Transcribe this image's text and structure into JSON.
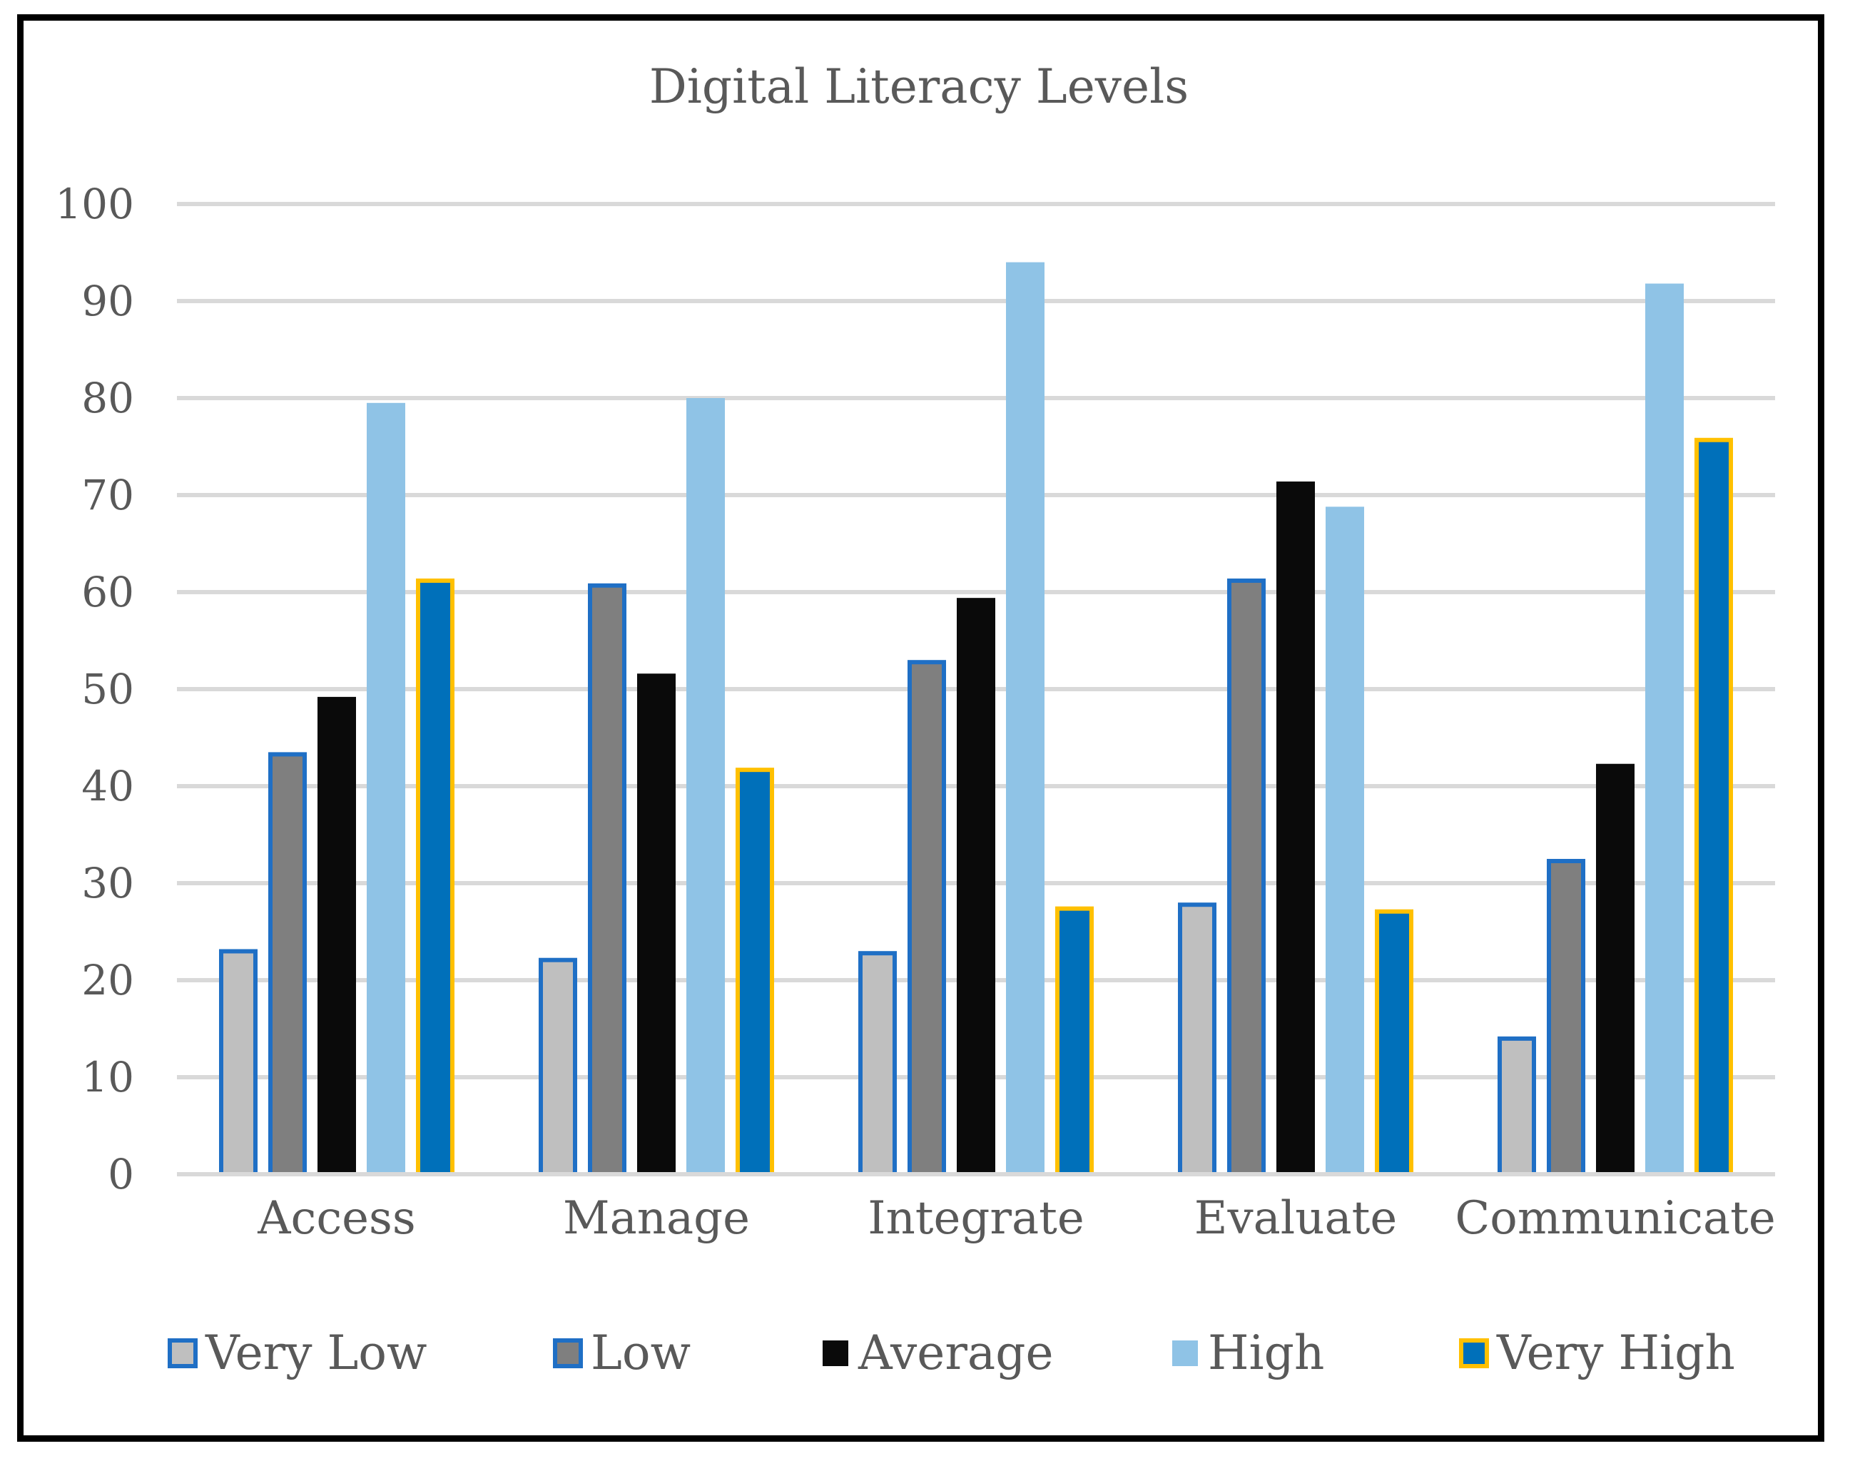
{
  "chart_data": {
    "type": "bar",
    "title": "Digital Literacy Levels",
    "xlabel": "",
    "ylabel": "",
    "ylim": [
      0,
      100
    ],
    "yticks": [
      0,
      10,
      20,
      30,
      40,
      50,
      60,
      70,
      80,
      90,
      100
    ],
    "grid": true,
    "legend_position": "bottom",
    "categories": [
      "Access",
      "Manage",
      "Integrate",
      "Evaluate",
      "Communicate"
    ],
    "series": [
      {
        "name": "Very Low",
        "fill": "#BFBFBF",
        "stroke": "#1F6FC5",
        "values": [
          23.2,
          22.3,
          23.0,
          28.0,
          14.2
        ]
      },
      {
        "name": "Low",
        "fill": "#7F7F7F",
        "stroke": "#1F6FC5",
        "values": [
          43.5,
          60.9,
          53.0,
          61.4,
          32.5
        ]
      },
      {
        "name": "Average",
        "fill": "#0A0A0A",
        "stroke": "none",
        "values": [
          49.2,
          51.6,
          59.4,
          71.4,
          42.3
        ]
      },
      {
        "name": "High",
        "fill": "#8FC3E6",
        "stroke": "none",
        "values": [
          79.5,
          80.0,
          94.0,
          68.8,
          91.8
        ]
      },
      {
        "name": "Very High",
        "fill": "#0070BA",
        "stroke": "#FFC000",
        "values": [
          61.4,
          41.9,
          27.6,
          27.3,
          75.9
        ]
      }
    ]
  }
}
